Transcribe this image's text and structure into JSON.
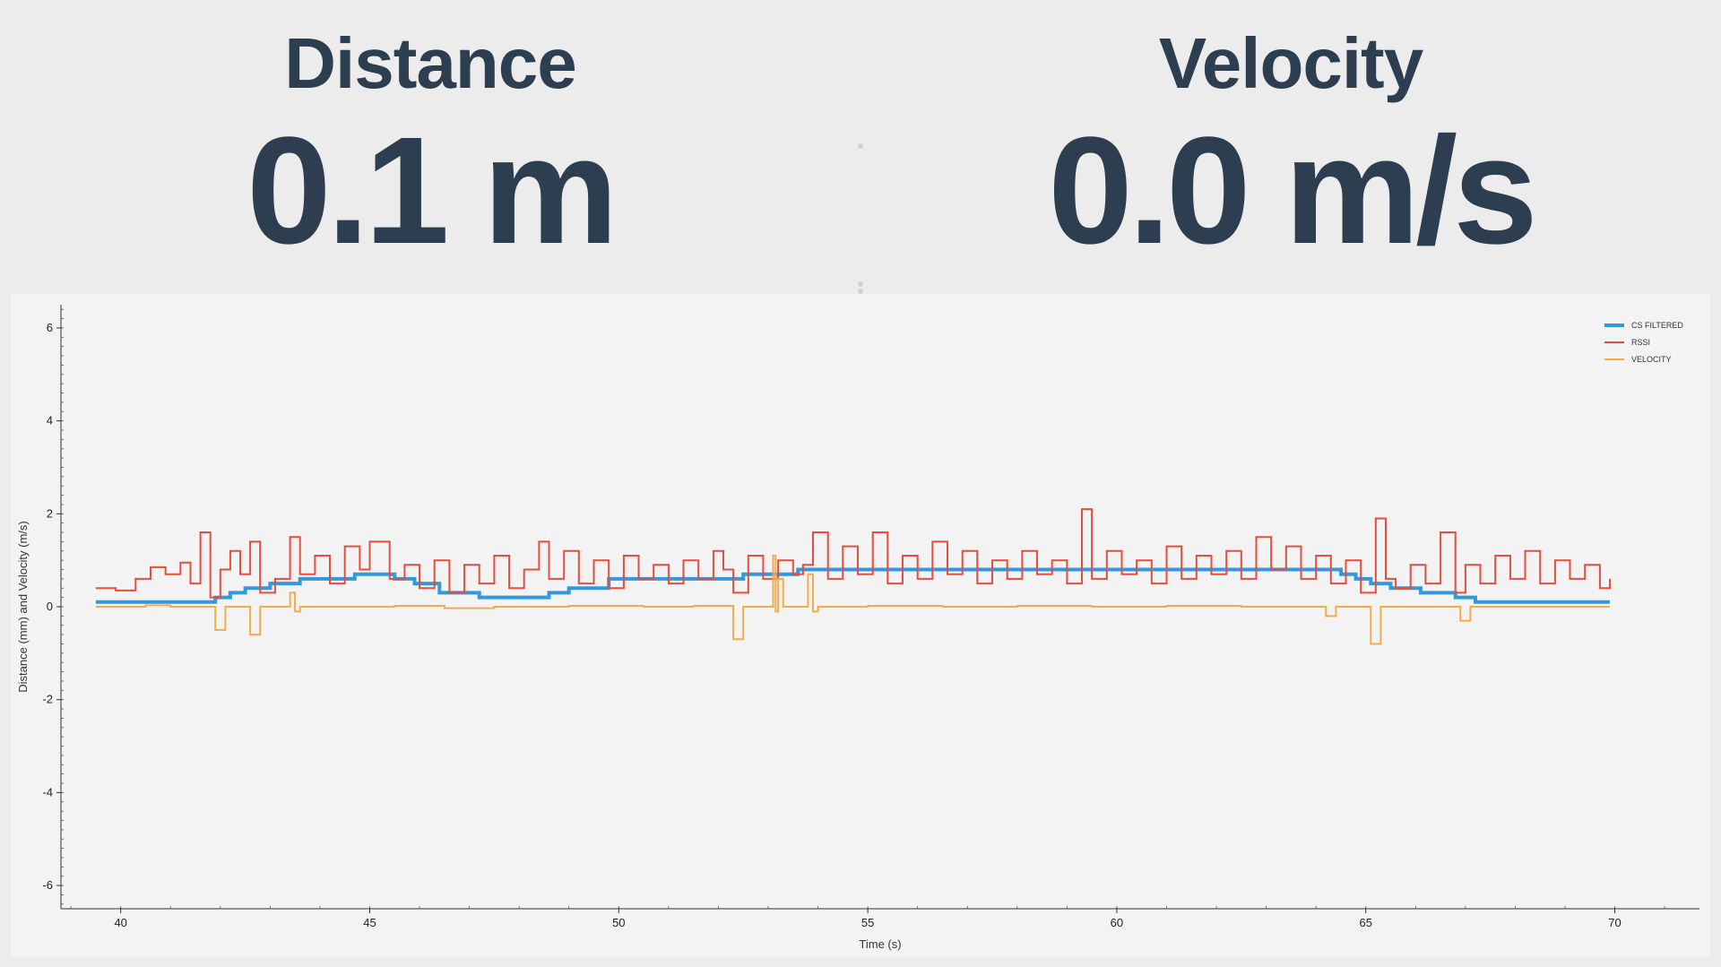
{
  "metrics": {
    "distance": {
      "title": "Distance",
      "value": "0.1 m"
    },
    "velocity": {
      "title": "Velocity",
      "value": "0.0 m/s"
    }
  },
  "chart_data": {
    "type": "line",
    "xlabel": "Time (s)",
    "ylabel": "Distance (mm) and Velocity (m/s)",
    "xlim": [
      38.8,
      71.7
    ],
    "ylim": [
      -6.5,
      6.5
    ],
    "x_ticks": [
      40,
      45,
      50,
      55,
      60,
      65,
      70
    ],
    "y_ticks": [
      -6,
      -4,
      -2,
      0,
      2,
      4,
      6
    ],
    "grid": false,
    "legend_position": "top-right",
    "series": [
      {
        "name": "CS FILTERED",
        "color": "#3498db",
        "x": [
          39.5,
          41.9,
          42.2,
          42.5,
          43.0,
          43.6,
          44.7,
          45.5,
          45.9,
          46.4,
          47.2,
          48.6,
          49.0,
          49.8,
          52.5,
          53.6,
          64.5,
          64.8,
          65.1,
          65.5,
          66.1,
          66.8,
          67.2,
          69.9
        ],
        "values": [
          0.1,
          0.2,
          0.3,
          0.4,
          0.5,
          0.6,
          0.7,
          0.6,
          0.5,
          0.3,
          0.2,
          0.3,
          0.4,
          0.6,
          0.7,
          0.8,
          0.7,
          0.6,
          0.5,
          0.4,
          0.3,
          0.2,
          0.1,
          0.1
        ]
      },
      {
        "name": "RSSI",
        "color": "#e74c3c",
        "x": [
          39.5,
          39.9,
          40.3,
          40.6,
          40.9,
          41.2,
          41.4,
          41.6,
          41.8,
          42.0,
          42.2,
          42.4,
          42.6,
          42.8,
          43.1,
          43.4,
          43.6,
          43.9,
          44.2,
          44.5,
          44.8,
          45.0,
          45.4,
          45.7,
          46.0,
          46.3,
          46.6,
          46.9,
          47.2,
          47.5,
          47.8,
          48.1,
          48.4,
          48.6,
          48.9,
          49.2,
          49.5,
          49.8,
          50.1,
          50.4,
          50.7,
          51.0,
          51.3,
          51.6,
          51.9,
          52.1,
          52.3,
          52.6,
          52.9,
          53.2,
          53.5,
          53.7,
          53.9,
          54.2,
          54.5,
          54.8,
          55.1,
          55.4,
          55.7,
          56.0,
          56.3,
          56.6,
          56.9,
          57.2,
          57.5,
          57.8,
          58.1,
          58.4,
          58.7,
          59.0,
          59.3,
          59.5,
          59.8,
          60.1,
          60.4,
          60.7,
          61.0,
          61.3,
          61.6,
          61.9,
          62.2,
          62.5,
          62.8,
          63.1,
          63.4,
          63.7,
          64.0,
          64.3,
          64.6,
          64.9,
          65.2,
          65.4,
          65.6,
          65.9,
          66.2,
          66.5,
          66.8,
          67.0,
          67.3,
          67.6,
          67.9,
          68.2,
          68.5,
          68.8,
          69.1,
          69.4,
          69.7,
          69.9
        ],
        "values": [
          0.4,
          0.35,
          0.6,
          0.85,
          0.7,
          0.95,
          0.5,
          1.6,
          0.2,
          0.8,
          1.2,
          0.7,
          1.4,
          0.3,
          0.6,
          1.5,
          0.7,
          1.1,
          0.5,
          1.3,
          0.8,
          1.4,
          0.6,
          0.9,
          0.4,
          1.0,
          0.3,
          0.9,
          0.5,
          1.1,
          0.4,
          0.8,
          1.4,
          0.6,
          1.2,
          0.5,
          1.0,
          0.4,
          1.1,
          0.6,
          0.9,
          0.5,
          1.0,
          0.6,
          1.2,
          0.8,
          0.3,
          1.1,
          0.6,
          1.0,
          0.7,
          0.9,
          1.6,
          0.6,
          1.3,
          0.7,
          1.6,
          0.5,
          1.1,
          0.6,
          1.4,
          0.7,
          1.2,
          0.5,
          1.0,
          0.6,
          1.2,
          0.7,
          1.0,
          0.5,
          2.1,
          0.6,
          1.2,
          0.7,
          1.0,
          0.5,
          1.3,
          0.6,
          1.1,
          0.7,
          1.2,
          0.6,
          1.5,
          0.8,
          1.3,
          0.6,
          1.1,
          0.5,
          1.0,
          0.3,
          1.9,
          0.6,
          0.4,
          0.9,
          0.5,
          1.6,
          0.3,
          0.9,
          0.5,
          1.1,
          0.6,
          1.2,
          0.5,
          1.0,
          0.6,
          0.9,
          0.4,
          0.6
        ]
      },
      {
        "name": "VELOCITY",
        "color": "#f0ad4e",
        "x": [
          39.5,
          40.5,
          41.0,
          41.9,
          42.0,
          42.1,
          42.6,
          42.7,
          42.8,
          43.4,
          43.5,
          43.6,
          45.5,
          46.5,
          47.5,
          49.0,
          50.5,
          51.5,
          52.3,
          52.4,
          52.5,
          53.1,
          53.15,
          53.2,
          53.3,
          53.8,
          53.9,
          54.0,
          55.0,
          56.5,
          58.0,
          59.5,
          61.0,
          62.5,
          64.2,
          64.3,
          64.4,
          65.1,
          65.2,
          65.3,
          66.9,
          67.0,
          67.1,
          67.5,
          69.9
        ],
        "values": [
          0.0,
          0.03,
          0.0,
          -0.5,
          -0.5,
          0.0,
          -0.6,
          -0.6,
          0.0,
          0.3,
          -0.1,
          0.0,
          0.02,
          -0.03,
          0.0,
          0.02,
          0.0,
          0.02,
          -0.7,
          -0.7,
          0.0,
          1.1,
          -0.1,
          0.6,
          0.0,
          0.7,
          -0.1,
          0.0,
          0.02,
          0.0,
          0.02,
          0.0,
          0.02,
          0.0,
          -0.2,
          -0.2,
          0.0,
          -0.8,
          -0.8,
          0.0,
          -0.3,
          -0.3,
          0.0,
          0.0,
          0.0
        ]
      }
    ]
  }
}
